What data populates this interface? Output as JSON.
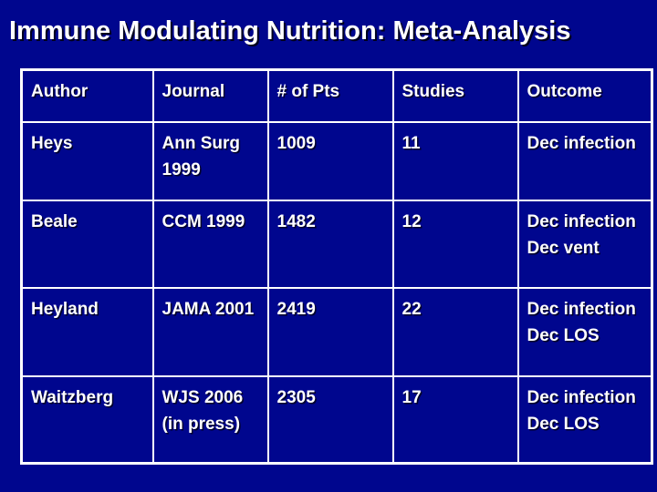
{
  "slide": {
    "title": "Immune Modulating Nutrition: Meta-Analysis",
    "colors": {
      "background": "#00068e",
      "table_border": "#ffffff",
      "text": "#ffffff"
    }
  },
  "table": {
    "headers": [
      "Author",
      "Journal",
      "# of Pts",
      "Studies",
      "Outcome"
    ],
    "rows": [
      [
        "Heys",
        "Ann Surg\n1999",
        "1009",
        "11",
        "Dec infection"
      ],
      [
        "Beale",
        "CCM 1999",
        "1482",
        "12",
        "Dec infection\nDec vent"
      ],
      [
        "Heyland",
        "JAMA 2001",
        "2419",
        "22",
        "Dec infection\nDec LOS"
      ],
      [
        "Waitzberg",
        "WJS 2006\n(in press)",
        "2305",
        "17",
        "Dec infection\nDec LOS"
      ]
    ]
  }
}
